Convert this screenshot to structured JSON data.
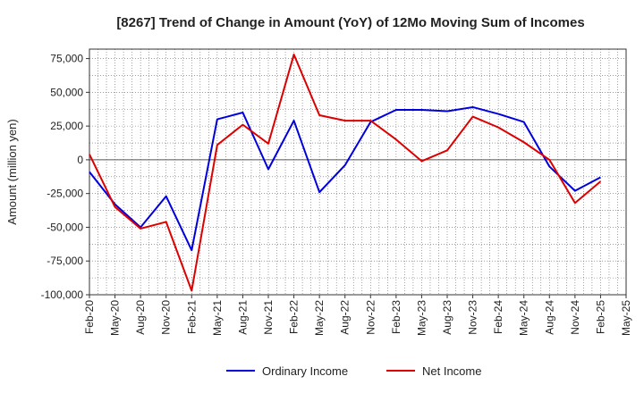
{
  "chart_data": {
    "type": "line",
    "title": "[8267]  Trend of Change in Amount (YoY) of 12Mo Moving Sum of Incomes",
    "xlabel": "",
    "ylabel": "Amount (million yen)",
    "ylim": [
      -100000,
      82000
    ],
    "yticks": [
      75000,
      50000,
      25000,
      0,
      -25000,
      -50000,
      -75000,
      -100000
    ],
    "ytick_labels": [
      "75,000",
      "50,000",
      "25,000",
      "0",
      "-25,000",
      "-50,000",
      "-75,000",
      "-100,000"
    ],
    "x": [
      "Feb-20",
      "May-20",
      "Aug-20",
      "Nov-20",
      "Feb-21",
      "May-21",
      "Aug-21",
      "Nov-21",
      "Feb-22",
      "May-22",
      "Aug-22",
      "Nov-22",
      "Feb-23",
      "May-23",
      "Aug-23",
      "Nov-23",
      "Feb-24",
      "May-24",
      "Aug-24",
      "Nov-24",
      "Feb-25",
      "May-25"
    ],
    "grid": true,
    "legend_position": "bottom",
    "series": [
      {
        "name": "Ordinary Income",
        "color": "#0000dd",
        "values": [
          -9000,
          -33000,
          -50000,
          -27000,
          -67000,
          30000,
          35000,
          -7000,
          29000,
          -24000,
          -4000,
          28000,
          37000,
          37000,
          36000,
          39000,
          34000,
          28000,
          -5000,
          -23000,
          -13000,
          null
        ]
      },
      {
        "name": "Net Income",
        "color": "#dd0000",
        "values": [
          4000,
          -35000,
          -51000,
          -46000,
          -97000,
          11000,
          26000,
          12000,
          78000,
          33000,
          29000,
          29000,
          15000,
          -1000,
          7000,
          32000,
          24000,
          13000,
          0,
          -32000,
          -16000,
          null
        ]
      }
    ]
  }
}
